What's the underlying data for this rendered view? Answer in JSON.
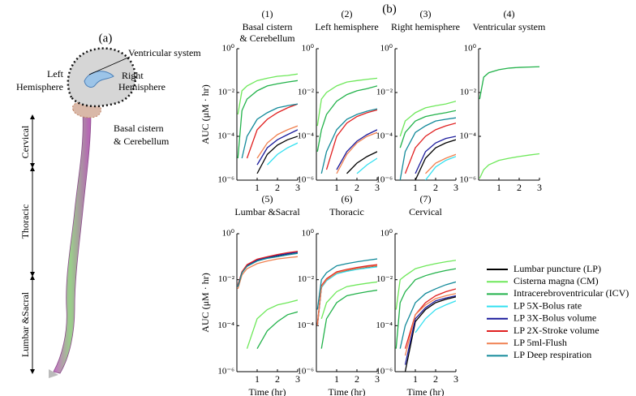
{
  "figure_label_b": "(b)",
  "illustration": {
    "label": "(a)",
    "ventricular_system": "Ventricular system",
    "left_hemisphere": [
      "Left",
      "Hemisphere"
    ],
    "right_hemisphere": [
      "Right",
      "Hemisphere"
    ],
    "basal_cistern": [
      "Basal cistern",
      "& Cerebellum"
    ],
    "regions": [
      "Cervical",
      "Thoracic",
      "Lumbar &Sacral"
    ]
  },
  "legend": [
    {
      "name": "Lumbar puncture (LP)",
      "color": "#000000"
    },
    {
      "name": "Cisterna magna (CM)",
      "color": "#6ee85a"
    },
    {
      "name": "Intracerebroventricular (ICV)",
      "color": "#22b24a"
    },
    {
      "name": "LP 5X-Bolus rate",
      "color": "#35e0f0"
    },
    {
      "name": "LP 3X-Bolus volume",
      "color": "#1c1c9c"
    },
    {
      "name": "LP 2X-Stroke volume",
      "color": "#e02020"
    },
    {
      "name": "LP 5ml-Flush",
      "color": "#f08050"
    },
    {
      "name": "LP Deep respiration",
      "color": "#138a9a"
    }
  ],
  "chart_data": [
    {
      "type": "line",
      "panel": "(1)",
      "title": [
        "Basal cistern",
        "& Cerebellum"
      ],
      "ylabel": "AUC (μM · hr)",
      "log_y": true,
      "x": [
        0.05,
        0.25,
        0.5,
        1,
        1.5,
        2,
        2.5,
        3
      ],
      "xlim": [
        0,
        3
      ],
      "xticks": [
        1,
        2,
        3
      ],
      "ylim": [
        1e-06,
        1
      ],
      "yticks": [
        {
          "value": 1e-06,
          "label": "10⁻⁶"
        },
        {
          "value": 0.0001,
          "label": "10⁻⁴"
        },
        {
          "value": 0.01,
          "label": "10⁻²"
        },
        {
          "value": 1,
          "label": "10⁰"
        }
      ],
      "series": [
        {
          "color": "#000000",
          "values": [
            null,
            null,
            null,
            2e-06,
            1.5e-05,
            4e-05,
            7e-05,
            0.0001
          ]
        },
        {
          "color": "#6ee85a",
          "values": [
            0.001,
            0.012,
            0.02,
            0.035,
            0.045,
            0.055,
            0.06,
            0.07
          ]
        },
        {
          "color": "#22b24a",
          "values": [
            1e-05,
            0.0015,
            0.005,
            0.012,
            0.02,
            0.025,
            0.03,
            0.035
          ]
        },
        {
          "color": "#35e0f0",
          "values": [
            null,
            null,
            null,
            null,
            5e-06,
            1.5e-05,
            3e-05,
            5e-05
          ]
        },
        {
          "color": "#1c1c9c",
          "values": [
            null,
            null,
            null,
            5e-06,
            3e-05,
            7e-05,
            0.00012,
            0.0002
          ]
        },
        {
          "color": "#e02020",
          "values": [
            null,
            null,
            1e-05,
            0.0002,
            0.0006,
            0.0012,
            0.002,
            0.003
          ]
        },
        {
          "color": "#f08050",
          "values": [
            null,
            null,
            null,
            1e-05,
            5e-05,
            0.00012,
            0.0002,
            0.0003
          ]
        },
        {
          "color": "#138a9a",
          "values": [
            null,
            1e-05,
            0.0001,
            0.0006,
            0.0012,
            0.002,
            0.0025,
            0.003
          ]
        }
      ]
    },
    {
      "type": "line",
      "panel": "(2)",
      "title": [
        "Left hemisphere"
      ],
      "log_y": true,
      "x": [
        0.05,
        0.25,
        0.5,
        1,
        1.5,
        2,
        2.5,
        3
      ],
      "xlim": [
        0,
        3
      ],
      "xticks": [
        1,
        2,
        3
      ],
      "ylim": [
        1e-06,
        1
      ],
      "yticks": [
        {
          "value": 1e-06,
          "label": "10⁻⁶"
        },
        {
          "value": 0.0001,
          "label": "10⁻⁴"
        },
        {
          "value": 0.01,
          "label": "10⁻²"
        },
        {
          "value": 1,
          "label": "10⁰"
        }
      ],
      "series": [
        {
          "color": "#000000",
          "values": [
            null,
            null,
            null,
            null,
            2e-06,
            6e-06,
            1.2e-05,
            2e-05
          ]
        },
        {
          "color": "#6ee85a",
          "values": [
            0.0003,
            0.005,
            0.01,
            0.02,
            0.03,
            0.035,
            0.04,
            0.045
          ]
        },
        {
          "color": "#22b24a",
          "values": [
            2e-05,
            0.0002,
            0.001,
            0.004,
            0.008,
            0.012,
            0.015,
            0.02
          ]
        },
        {
          "color": "#35e0f0",
          "values": [
            null,
            null,
            null,
            null,
            null,
            2e-06,
            5e-06,
            1e-05
          ]
        },
        {
          "color": "#1c1c9c",
          "values": [
            null,
            null,
            null,
            3e-06,
            2e-05,
            6e-05,
            0.00012,
            0.0002
          ]
        },
        {
          "color": "#e02020",
          "values": [
            null,
            null,
            3e-06,
            0.0001,
            0.0004,
            0.0008,
            0.0012,
            0.0016
          ]
        },
        {
          "color": "#f08050",
          "values": [
            null,
            null,
            null,
            2e-06,
            1.5e-05,
            5e-05,
            0.0001,
            0.00015
          ]
        },
        {
          "color": "#138a9a",
          "values": [
            null,
            2e-06,
            2e-05,
            0.0002,
            0.0006,
            0.001,
            0.0014,
            0.0018
          ]
        }
      ]
    },
    {
      "type": "line",
      "panel": "(3)",
      "title": [
        "Right hemisphere"
      ],
      "log_y": true,
      "x": [
        0.05,
        0.25,
        0.5,
        1,
        1.5,
        2,
        2.5,
        3
      ],
      "xlim": [
        0,
        3
      ],
      "xticks": [
        1,
        2,
        3
      ],
      "ylim": [
        1e-06,
        1
      ],
      "yticks": [
        {
          "value": 1e-06,
          "label": "10⁻⁶"
        },
        {
          "value": 0.0001,
          "label": "10⁻⁴"
        },
        {
          "value": 0.01,
          "label": "10⁻²"
        },
        {
          "value": 1,
          "label": "10⁰"
        }
      ],
      "series": [
        {
          "color": "#000000",
          "values": [
            null,
            null,
            null,
            1e-06,
            1e-05,
            3e-05,
            5e-05,
            7e-05
          ]
        },
        {
          "color": "#6ee85a",
          "values": [
            null,
            0.0001,
            0.0005,
            0.0012,
            0.002,
            0.0025,
            0.003,
            0.004
          ]
        },
        {
          "color": "#22b24a",
          "values": [
            null,
            3e-05,
            0.00015,
            0.0005,
            0.0008,
            0.001,
            0.0012,
            0.0015
          ]
        },
        {
          "color": "#35e0f0",
          "values": [
            null,
            null,
            null,
            null,
            1e-06,
            4e-06,
            8e-06,
            1.2e-05
          ]
        },
        {
          "color": "#1c1c9c",
          "values": [
            null,
            null,
            null,
            2e-06,
            2e-05,
            5e-05,
            8e-05,
            0.0001
          ]
        },
        {
          "color": "#e02020",
          "values": [
            null,
            null,
            2e-06,
            3e-05,
            0.0001,
            0.0002,
            0.0003,
            0.0004
          ]
        },
        {
          "color": "#f08050",
          "values": [
            null,
            null,
            null,
            null,
            2e-06,
            6e-06,
            1e-05,
            1.5e-05
          ]
        },
        {
          "color": "#138a9a",
          "values": [
            null,
            1e-06,
            2e-05,
            0.00015,
            0.0003,
            0.0005,
            0.0006,
            0.0007
          ]
        }
      ]
    },
    {
      "type": "line",
      "panel": "(4)",
      "title": [
        "Ventricular system"
      ],
      "log_y": true,
      "x": [
        0.05,
        0.25,
        0.5,
        1,
        1.5,
        2,
        2.5,
        3
      ],
      "xlim": [
        0,
        3
      ],
      "xticks": [
        1,
        2,
        3
      ],
      "ylim": [
        1e-06,
        1
      ],
      "yticks": [
        {
          "value": 1e-06,
          "label": "10⁻⁶"
        },
        {
          "value": 0.0001,
          "label": "10⁻⁴"
        },
        {
          "value": 0.01,
          "label": "10⁻²"
        },
        {
          "value": 1,
          "label": "10⁰"
        }
      ],
      "series": [
        {
          "color": "#6ee85a",
          "values": [
            1.2e-06,
            3e-06,
            5e-06,
            8e-06,
            1e-05,
            1.2e-05,
            1.4e-05,
            1.6e-05
          ]
        },
        {
          "color": "#22b24a",
          "values": [
            0.005,
            0.05,
            0.08,
            0.11,
            0.13,
            0.14,
            0.145,
            0.15
          ]
        }
      ]
    },
    {
      "type": "line",
      "panel": "(5)",
      "title": [
        "Lumbar &Sacral"
      ],
      "ylabel": "AUC (μM · hr)",
      "xlabel": "Time (hr)",
      "log_y": true,
      "x": [
        0.05,
        0.25,
        0.5,
        1,
        1.5,
        2,
        2.5,
        3
      ],
      "xlim": [
        0,
        3
      ],
      "xticks": [
        1,
        2,
        3
      ],
      "ylim": [
        1e-06,
        1
      ],
      "yticks": [
        {
          "value": 1e-06,
          "label": "10⁻⁶"
        },
        {
          "value": 0.0001,
          "label": "10⁻⁴"
        },
        {
          "value": 0.01,
          "label": "10⁻²"
        },
        {
          "value": 1,
          "label": "10⁰"
        }
      ],
      "series": [
        {
          "color": "#000000",
          "values": [
            0.005,
            0.02,
            0.04,
            0.07,
            0.09,
            0.11,
            0.13,
            0.15
          ]
        },
        {
          "color": "#6ee85a",
          "values": [
            null,
            null,
            1e-05,
            0.0002,
            0.0005,
            0.0008,
            0.001,
            0.0013
          ]
        },
        {
          "color": "#22b24a",
          "values": [
            null,
            null,
            null,
            1e-05,
            6e-05,
            0.00015,
            0.0003,
            0.0004
          ]
        },
        {
          "color": "#35e0f0",
          "values": [
            0.005,
            0.02,
            0.04,
            0.07,
            0.095,
            0.115,
            0.135,
            0.155
          ]
        },
        {
          "color": "#1c1c9c",
          "values": [
            0.005,
            0.021,
            0.042,
            0.072,
            0.095,
            0.115,
            0.135,
            0.16
          ]
        },
        {
          "color": "#e02020",
          "values": [
            0.006,
            0.022,
            0.045,
            0.078,
            0.1,
            0.125,
            0.15,
            0.17
          ]
        },
        {
          "color": "#f08050",
          "values": [
            0.004,
            0.016,
            0.03,
            0.05,
            0.065,
            0.08,
            0.09,
            0.1
          ]
        },
        {
          "color": "#138a9a",
          "values": [
            0.005,
            0.02,
            0.038,
            0.065,
            0.085,
            0.1,
            0.12,
            0.14
          ]
        }
      ]
    },
    {
      "type": "line",
      "panel": "(6)",
      "title": [
        "Thoracic"
      ],
      "xlabel": "Time (hr)",
      "log_y": true,
      "x": [
        0.05,
        0.25,
        0.5,
        1,
        1.5,
        2,
        2.5,
        3
      ],
      "xlim": [
        0,
        3
      ],
      "xticks": [
        1,
        2,
        3
      ],
      "ylim": [
        1e-06,
        1
      ],
      "yticks": [
        {
          "value": 1e-06,
          "label": "10⁻⁶"
        },
        {
          "value": 0.0001,
          "label": "10⁻⁴"
        },
        {
          "value": 0.01,
          "label": "10⁻²"
        },
        {
          "value": 1,
          "label": "10⁰"
        }
      ],
      "series": [
        {
          "color": "#000000",
          "values": [
            0.0001,
            0.005,
            0.01,
            0.02,
            0.025,
            0.03,
            0.035,
            0.04
          ]
        },
        {
          "color": "#6ee85a",
          "values": [
            null,
            0.0002,
            0.001,
            0.003,
            0.005,
            0.006,
            0.007,
            0.008
          ]
        },
        {
          "color": "#22b24a",
          "values": [
            null,
            1e-05,
            0.0002,
            0.001,
            0.002,
            0.0025,
            0.003,
            0.0035
          ]
        },
        {
          "color": "#35e0f0",
          "values": [
            0.0001,
            0.0045,
            0.009,
            0.018,
            0.023,
            0.028,
            0.032,
            0.036
          ]
        },
        {
          "color": "#1c1c9c",
          "values": [
            0.0001,
            0.005,
            0.01,
            0.021,
            0.027,
            0.032,
            0.037,
            0.042
          ]
        },
        {
          "color": "#e02020",
          "values": [
            0.00012,
            0.0055,
            0.011,
            0.022,
            0.028,
            0.034,
            0.04,
            0.045
          ]
        },
        {
          "color": "#f08050",
          "values": [
            0.0001,
            0.005,
            0.01,
            0.02,
            0.026,
            0.031,
            0.036,
            0.041
          ]
        },
        {
          "color": "#138a9a",
          "values": [
            0.0005,
            0.01,
            0.02,
            0.04,
            0.05,
            0.06,
            0.07,
            0.08
          ]
        }
      ]
    },
    {
      "type": "line",
      "panel": "(7)",
      "title": [
        "Cervical"
      ],
      "xlabel": "Time (hr)",
      "log_y": true,
      "x": [
        0.05,
        0.25,
        0.5,
        1,
        1.5,
        2,
        2.5,
        3
      ],
      "xlim": [
        0,
        3
      ],
      "xticks": [
        1,
        2,
        3
      ],
      "ylim": [
        1e-06,
        1
      ],
      "yticks": [
        {
          "value": 1e-06,
          "label": "10⁻⁶"
        },
        {
          "value": 0.0001,
          "label": "10⁻⁴"
        },
        {
          "value": 0.01,
          "label": "10⁻²"
        },
        {
          "value": 1,
          "label": "10⁰"
        }
      ],
      "series": [
        {
          "color": "#000000",
          "values": [
            null,
            null,
            1e-06,
            0.00015,
            0.0005,
            0.001,
            0.0014,
            0.0018
          ]
        },
        {
          "color": "#6ee85a",
          "values": [
            0.0005,
            0.01,
            0.015,
            0.03,
            0.04,
            0.05,
            0.06,
            0.07
          ]
        },
        {
          "color": "#22b24a",
          "values": [
            1e-05,
            0.001,
            0.003,
            0.01,
            0.015,
            0.02,
            0.025,
            0.03
          ]
        },
        {
          "color": "#35e0f0",
          "values": [
            null,
            null,
            null,
            5e-05,
            0.0002,
            0.0005,
            0.0008,
            0.0012
          ]
        },
        {
          "color": "#1c1c9c",
          "values": [
            null,
            null,
            2e-06,
            0.0002,
            0.0006,
            0.0012,
            0.0016,
            0.002
          ]
        },
        {
          "color": "#e02020",
          "values": [
            null,
            null,
            1e-05,
            0.0003,
            0.001,
            0.002,
            0.003,
            0.004
          ]
        },
        {
          "color": "#f08050",
          "values": [
            null,
            null,
            5e-06,
            0.0003,
            0.0008,
            0.0015,
            0.002,
            0.0025
          ]
        },
        {
          "color": "#138a9a",
          "values": [
            null,
            1e-05,
            0.0001,
            0.001,
            0.0025,
            0.004,
            0.006,
            0.008
          ]
        }
      ]
    }
  ]
}
